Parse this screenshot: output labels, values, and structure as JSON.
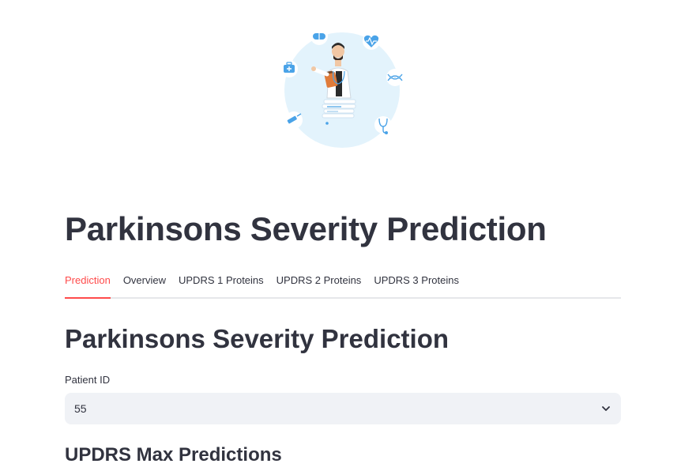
{
  "hero": {
    "icons": [
      "pill-icon",
      "heart-rate-icon",
      "first-aid-kit-icon",
      "dna-icon",
      "syringe-icon",
      "stethoscope-icon"
    ],
    "illustration": "doctor-illustration",
    "accent_color": "#4aa3e8",
    "circle_color": "#e3f3fc"
  },
  "page": {
    "title": "Parkinsons Severity Prediction"
  },
  "tabs": [
    {
      "label": "Prediction",
      "active": true
    },
    {
      "label": "Overview",
      "active": false
    },
    {
      "label": "UPDRS 1 Proteins",
      "active": false
    },
    {
      "label": "UPDRS 2 Proteins",
      "active": false
    },
    {
      "label": "UPDRS 3 Proteins",
      "active": false
    }
  ],
  "prediction": {
    "title": "Parkinsons Severity Prediction",
    "patient_label": "Patient ID",
    "patient_value": "55",
    "subtitle": "UPDRS Max Predictions"
  },
  "colors": {
    "active_tab": "#ff4b4b",
    "text": "#31333f",
    "select_bg": "#f0f2f6"
  }
}
